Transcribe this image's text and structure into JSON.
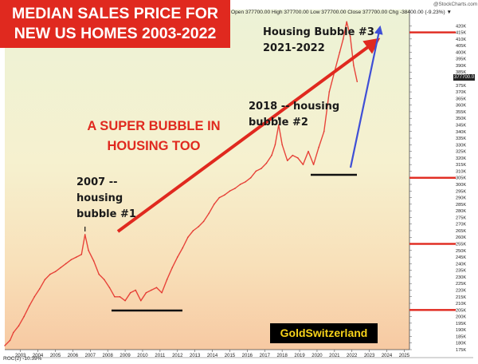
{
  "title_lines": [
    "MEDIAN SALES PRICE FOR",
    "NEW US HOMES 2003-2022"
  ],
  "header_info": "Open 377700.00  High 377700.00  Low 377700.00  Close 377700.00  Chg -38400.00 (-9.23%) ▼",
  "credit": "@StockCharts.com",
  "last_value_tag": "377700.0",
  "headline_lines": [
    "A SUPER BUBBLE IN",
    "HOUSING TOO"
  ],
  "annotations": {
    "bubble1": [
      "2007 --",
      "housing",
      "bubble #1"
    ],
    "bubble2": [
      "2018 -- housing",
      "bubble #2"
    ],
    "bubble3": [
      "Housing Bubble #3",
      "2021-2022"
    ]
  },
  "brand": "GoldSwitzerland",
  "roc_label": "ROC(2) -10.39%",
  "colors": {
    "banner": "#e0291f",
    "series": "#e8443a",
    "headline": "#e0291f",
    "arrow_red": "#e0291f",
    "arrow_blue": "#3f4fd6",
    "brand_text": "#f6d21a"
  },
  "chart_data": {
    "type": "line",
    "title": "MEDIAN SALES PRICE FOR NEW US HOMES 2003-2022",
    "xlabel": "",
    "ylabel": "",
    "xlim": [
      2002.6,
      2025.8
    ],
    "ylim": [
      175000,
      425000
    ],
    "x_ticks": [
      "2003",
      "2004",
      "2005",
      "2006",
      "2007",
      "2008",
      "2009",
      "2010",
      "2011",
      "2012",
      "2013",
      "2014",
      "2015",
      "2016",
      "2017",
      "2018",
      "2019",
      "2020",
      "2021",
      "2022",
      "2023",
      "2024",
      "2025"
    ],
    "y_ticks": [
      "175K",
      "180K",
      "185K",
      "190K",
      "195K",
      "200K",
      "205K",
      "210K",
      "215K",
      "220K",
      "225K",
      "230K",
      "235K",
      "240K",
      "245K",
      "250K",
      "255K",
      "260K",
      "265K",
      "270K",
      "275K",
      "280K",
      "285K",
      "290K",
      "295K",
      "300K",
      "305K",
      "310K",
      "315K",
      "320K",
      "325K",
      "330K",
      "335K",
      "340K",
      "345K",
      "350K",
      "355K",
      "360K",
      "365K",
      "370K",
      "375K",
      "380K",
      "385K",
      "390K",
      "395K",
      "400K",
      "405K",
      "410K",
      "415K",
      "420K"
    ],
    "grid": false,
    "series": [
      {
        "x": [
          2002.6,
          2002.9,
          2003.1,
          2003.4,
          2003.7,
          2004.0,
          2004.3,
          2004.6,
          2004.9,
          2005.2,
          2005.5,
          2005.8,
          2006.1,
          2006.4,
          2006.7,
          2007.0,
          2007.2,
          2007.4,
          2007.7,
          2008.0,
          2008.3,
          2008.6,
          2008.9,
          2009.2,
          2009.5,
          2009.8,
          2010.1,
          2010.4,
          2010.7,
          2011.0,
          2011.3,
          2011.6,
          2011.9,
          2012.2,
          2012.5,
          2012.8,
          2013.1,
          2013.4,
          2013.7,
          2014.0,
          2014.3,
          2014.6,
          2014.9,
          2015.2,
          2015.5,
          2015.8,
          2016.1,
          2016.4,
          2016.7,
          2017.0,
          2017.3,
          2017.6,
          2017.9,
          2018.1,
          2018.3,
          2018.5,
          2018.8,
          2019.1,
          2019.4,
          2019.7,
          2020.0,
          2020.3,
          2020.6,
          2020.9,
          2021.2,
          2021.5,
          2021.8,
          2022.0,
          2022.2,
          2022.4,
          2022.6,
          2022.8
        ],
        "y": [
          178000,
          182000,
          188000,
          193000,
          200000,
          208000,
          215000,
          221000,
          228000,
          232000,
          234000,
          237000,
          240000,
          243000,
          245000,
          247000,
          262000,
          250000,
          242000,
          232000,
          228000,
          222000,
          215000,
          215000,
          212000,
          218000,
          220000,
          212000,
          218000,
          220000,
          222000,
          218000,
          228000,
          237000,
          245000,
          252000,
          260000,
          265000,
          268000,
          272000,
          278000,
          285000,
          290000,
          292000,
          295000,
          297000,
          300000,
          302000,
          305000,
          310000,
          312000,
          316000,
          322000,
          330000,
          345000,
          330000,
          318000,
          322000,
          320000,
          315000,
          325000,
          315000,
          328000,
          340000,
          370000,
          385000,
          400000,
          410000,
          423000,
          412000,
          390000,
          377700
        ]
      }
    ]
  }
}
